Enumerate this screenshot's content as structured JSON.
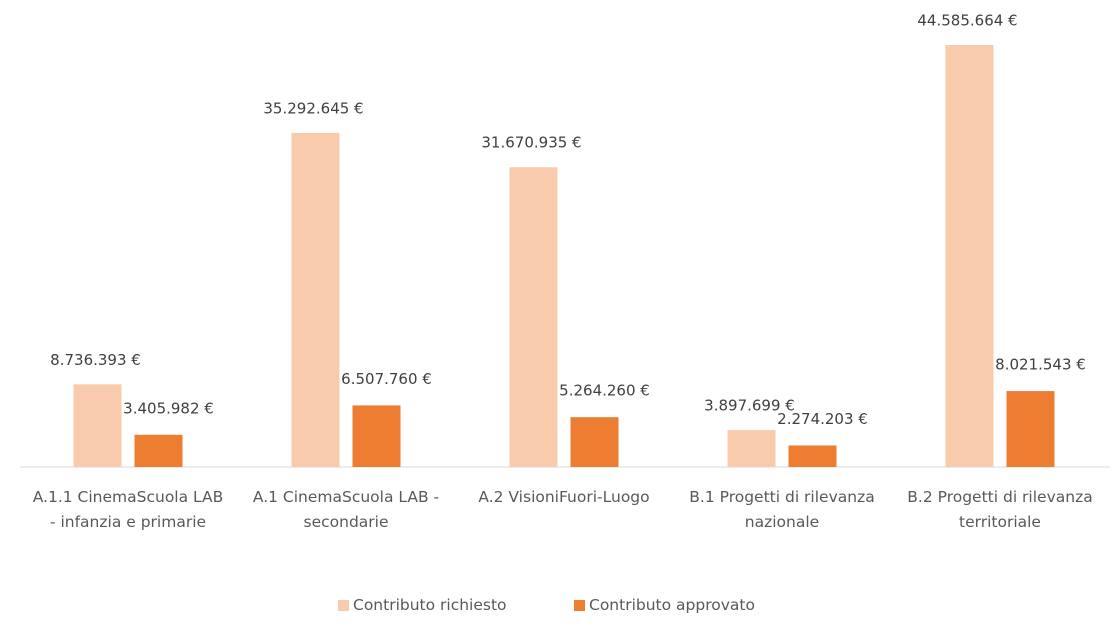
{
  "chart_data": {
    "type": "bar",
    "categories": [
      "A.1.1 CinemaScuola LAB - infanzia e primarie",
      "A.1 CinemaScuola LAB - secondarie",
      "A.2 VisioniFuori-Luogo",
      "B.1 Progetti di rilevanza nazionale",
      "B.2 Progetti di rilevanza territoriale"
    ],
    "series": [
      {
        "name": "Contributo richiesto",
        "color": "#f8cbad",
        "values": [
          8736393,
          35292645,
          31670935,
          3897699,
          44585664
        ],
        "value_labels": [
          "8.736.393 €",
          "35.292.645 €",
          "31.670.935 €",
          "3.897.699 €",
          "44.585.664 €"
        ]
      },
      {
        "name": "Contributo approvato",
        "color": "#ed7d31",
        "values": [
          3405982,
          6507760,
          5264260,
          2274203,
          8021543
        ],
        "value_labels": [
          "3.405.982 €",
          "6.507.760 €",
          "5.264.260 €",
          "2.274.203 €",
          "8.021.543 €"
        ]
      }
    ],
    "legend": "bottom"
  }
}
